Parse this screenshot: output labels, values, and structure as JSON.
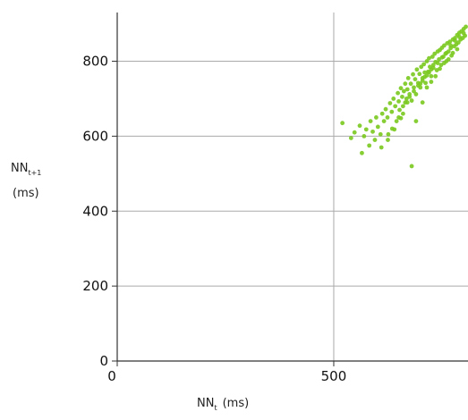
{
  "chart_data": {
    "type": "scatter",
    "title": "",
    "xlabel": {
      "base": "NN",
      "subscript": "t",
      "unit": "(ms)"
    },
    "ylabel": {
      "base": "NN",
      "subscript": "t+1",
      "unit": "(ms)"
    },
    "xlim": [
      0,
      810
    ],
    "ylim": [
      0,
      930
    ],
    "x_ticks": [
      "0",
      "500"
    ],
    "y_ticks": [
      "0",
      "200",
      "400",
      "600",
      "800"
    ],
    "grid": true,
    "legend": "none",
    "colors": {
      "points": "#7ac91f",
      "grid": "#aaaaaa",
      "axis": "#333333"
    },
    "series": [
      {
        "points": [
          [
            520,
            635
          ],
          [
            540,
            595
          ],
          [
            548,
            610
          ],
          [
            560,
            628
          ],
          [
            565,
            555
          ],
          [
            570,
            600
          ],
          [
            575,
            618
          ],
          [
            582,
            575
          ],
          [
            585,
            640
          ],
          [
            590,
            612
          ],
          [
            595,
            590
          ],
          [
            598,
            650
          ],
          [
            602,
            625
          ],
          [
            608,
            605
          ],
          [
            612,
            660
          ],
          [
            616,
            640
          ],
          [
            620,
            672
          ],
          [
            624,
            650
          ],
          [
            626,
            605
          ],
          [
            630,
            688
          ],
          [
            634,
            665
          ],
          [
            638,
            700
          ],
          [
            642,
            680
          ],
          [
            645,
            640
          ],
          [
            648,
            715
          ],
          [
            650,
            693
          ],
          [
            652,
            670
          ],
          [
            655,
            728
          ],
          [
            658,
            705
          ],
          [
            660,
            680
          ],
          [
            662,
            720
          ],
          [
            665,
            740
          ],
          [
            668,
            700
          ],
          [
            670,
            725
          ],
          [
            672,
            755
          ],
          [
            675,
            712
          ],
          [
            678,
            740
          ],
          [
            680,
            695
          ],
          [
            683,
            765
          ],
          [
            685,
            730
          ],
          [
            688,
            752
          ],
          [
            690,
            712
          ],
          [
            692,
            778
          ],
          [
            695,
            742
          ],
          [
            698,
            766
          ],
          [
            700,
            730
          ],
          [
            702,
            785
          ],
          [
            705,
            755
          ],
          [
            708,
            792
          ],
          [
            710,
            770
          ],
          [
            712,
            742
          ],
          [
            715,
            800
          ],
          [
            718,
            772
          ],
          [
            720,
            808
          ],
          [
            722,
            785
          ],
          [
            725,
            760
          ],
          [
            728,
            812
          ],
          [
            730,
            790
          ],
          [
            733,
            820
          ],
          [
            735,
            798
          ],
          [
            738,
            776
          ],
          [
            740,
            826
          ],
          [
            743,
            805
          ],
          [
            745,
            830
          ],
          [
            748,
            790
          ],
          [
            750,
            836
          ],
          [
            753,
            812
          ],
          [
            755,
            842
          ],
          [
            758,
            820
          ],
          [
            760,
            800
          ],
          [
            762,
            848
          ],
          [
            765,
            826
          ],
          [
            768,
            852
          ],
          [
            770,
            835
          ],
          [
            772,
            815
          ],
          [
            775,
            858
          ],
          [
            778,
            840
          ],
          [
            780,
            862
          ],
          [
            783,
            845
          ],
          [
            785,
            870
          ],
          [
            788,
            850
          ],
          [
            790,
            876
          ],
          [
            793,
            858
          ],
          [
            795,
            880
          ],
          [
            798,
            862
          ],
          [
            800,
            886
          ],
          [
            803,
            868
          ],
          [
            805,
            892
          ],
          [
            680,
            520
          ],
          [
            690,
            640
          ],
          [
            705,
            690
          ],
          [
            715,
            730
          ],
          [
            725,
            745
          ],
          [
            735,
            760
          ],
          [
            745,
            780
          ],
          [
            755,
            795
          ],
          [
            765,
            805
          ],
          [
            775,
            822
          ],
          [
            785,
            832
          ],
          [
            640,
            618
          ],
          [
            650,
            650
          ],
          [
            660,
            660
          ],
          [
            670,
            690
          ],
          [
            700,
            740
          ],
          [
            710,
            758
          ],
          [
            720,
            770
          ],
          [
            730,
            782
          ],
          [
            740,
            795
          ],
          [
            750,
            810
          ],
          [
            760,
            822
          ],
          [
            770,
            842
          ],
          [
            780,
            855
          ],
          [
            790,
            865
          ],
          [
            800,
            875
          ],
          [
            610,
            570
          ],
          [
            625,
            590
          ],
          [
            635,
            620
          ],
          [
            655,
            648
          ],
          [
            665,
            690
          ],
          [
            675,
            705
          ],
          [
            685,
            720
          ],
          [
            695,
            735
          ],
          [
            705,
            748
          ],
          [
            715,
            762
          ],
          [
            725,
            778
          ]
        ]
      }
    ]
  }
}
